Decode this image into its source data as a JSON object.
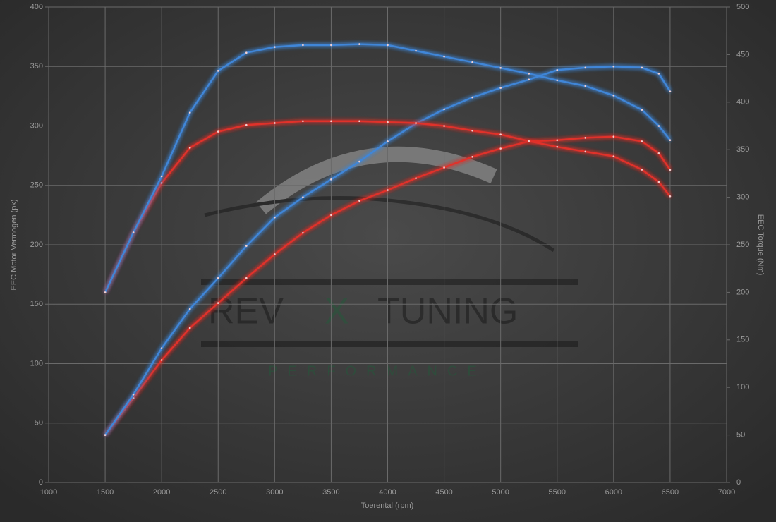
{
  "chart_data": {
    "type": "line",
    "x": [
      1500,
      1750,
      2000,
      2250,
      2500,
      2750,
      3000,
      3250,
      3500,
      3750,
      4000,
      4250,
      4500,
      4750,
      5000,
      5250,
      5500,
      5750,
      6000,
      6250,
      6400,
      6500
    ],
    "series": [
      {
        "color": "#e0302a",
        "axis": "y",
        "values": [
          40,
          71,
          103,
          130,
          151,
          172,
          192,
          210,
          225,
          237,
          246,
          256,
          265,
          274,
          281,
          287,
          288,
          290,
          291,
          287,
          277,
          263
        ]
      },
      {
        "color": "#3f86d8",
        "axis": "y",
        "values": [
          40,
          74,
          113,
          146,
          172,
          199,
          223,
          240,
          255,
          270,
          287,
          302,
          314,
          324,
          332,
          339,
          347,
          349,
          350,
          349,
          344,
          329
        ]
      },
      {
        "color": "#e0302a",
        "axis": "y2",
        "values": [
          200,
          263,
          315,
          352,
          369,
          376,
          378,
          380,
          380,
          380,
          379,
          378,
          375,
          370,
          366,
          359,
          353,
          348,
          343,
          329,
          316,
          301
        ]
      },
      {
        "color": "#3f86d8",
        "axis": "y2",
        "values": [
          200,
          263,
          322,
          389,
          433,
          452,
          458,
          460,
          460,
          461,
          460,
          454,
          448,
          442,
          436,
          430,
          423,
          417,
          407,
          392,
          375,
          360
        ]
      }
    ],
    "x_label": "Toerental (rpm)",
    "y_label": "EEC Motor Vermogen (pk)",
    "y2_label": "EEC Torque (Nm)",
    "xlim": [
      1000,
      7000
    ],
    "xticks": [
      1000,
      1500,
      2000,
      2500,
      3000,
      3500,
      4000,
      4500,
      5000,
      5500,
      6000,
      6500,
      7000
    ],
    "ylim": [
      0,
      400
    ],
    "yticks": [
      0,
      50,
      100,
      150,
      200,
      250,
      300,
      350,
      400
    ],
    "y2lim": [
      0,
      500
    ],
    "y2ticks": [
      0,
      50,
      100,
      150,
      200,
      250,
      300,
      350,
      400,
      450,
      500
    ],
    "grid": true,
    "watermark": {
      "word1": "REV",
      "word2": "X",
      "word3": "TUNING",
      "subtitle": "PERFORMANCE"
    }
  }
}
